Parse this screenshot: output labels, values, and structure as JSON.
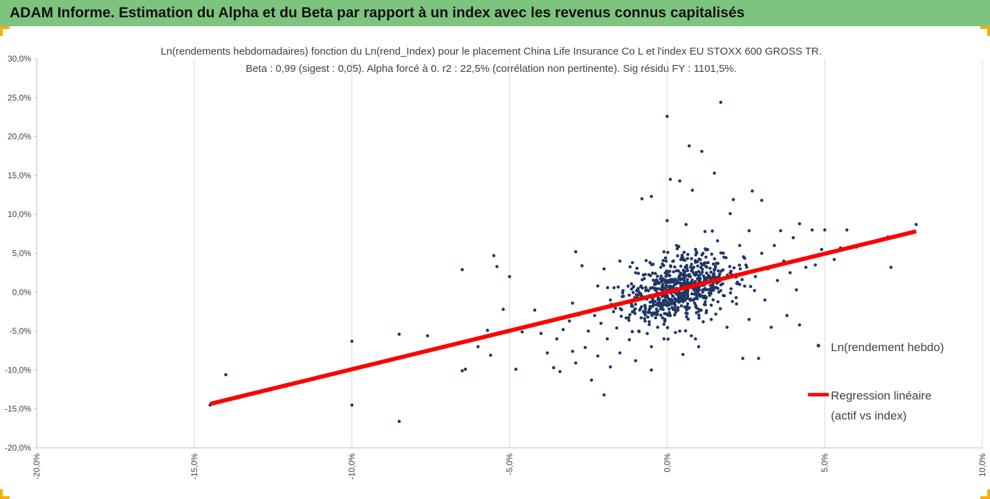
{
  "header": {
    "title": "ADAM Informe. Estimation du Alpha et du Beta par rapport à un index avec les revenus connus capitalisés"
  },
  "colors": {
    "banner": "#7dc47e",
    "points": "#1f3864",
    "regression": "#ff0000",
    "grid": "#d9d9d9",
    "corner": "#f2b300"
  },
  "chart_data": {
    "type": "scatter",
    "title": "Ln(rendements hebdomadaires) fonction du Ln(rend_Index) pour le placement China Life Insurance Co L et l'index EU STOXX 600 GROSS TR.",
    "subtitle": "Beta : 0,99 (sigest : 0,05). Alpha forcé à 0. r2 : 22,5% (corrélation non pertinente). Sig résidu FY : 1101,5%.",
    "xlim": [
      -0.2,
      0.1
    ],
    "ylim": [
      -0.2,
      0.3
    ],
    "x_ticks": [
      -0.2,
      -0.15,
      -0.1,
      -0.05,
      0.0,
      0.05,
      0.1
    ],
    "x_tick_labels": [
      "-20,0%",
      "-15,0%",
      "-10,0%",
      "-5,0%",
      "0,0%",
      "5,0%",
      "10,0%"
    ],
    "y_ticks": [
      -0.2,
      -0.15,
      -0.1,
      -0.05,
      0.0,
      0.05,
      0.1,
      0.15,
      0.2,
      0.25,
      0.3
    ],
    "y_tick_labels": [
      "-20,0%",
      "-15,0%",
      "-10,0%",
      "-5,0%",
      "0,0%",
      "5,0%",
      "10,0%",
      "15,0%",
      "20,0%",
      "25,0%",
      "30,0%"
    ],
    "grid": "vertical",
    "legend_position": "right",
    "series": [
      {
        "name": "Ln(rendement hebdo)",
        "kind": "scatter",
        "points": [
          [
            -0.145,
            -0.145
          ],
          [
            -0.14,
            -0.106
          ],
          [
            -0.1,
            -0.063
          ],
          [
            -0.1,
            -0.145
          ],
          [
            -0.085,
            -0.054
          ],
          [
            -0.085,
            -0.166
          ],
          [
            -0.076,
            -0.056
          ],
          [
            -0.065,
            -0.101
          ],
          [
            -0.065,
            0.029
          ],
          [
            -0.064,
            -0.099
          ],
          [
            -0.06,
            -0.07
          ],
          [
            -0.057,
            -0.049
          ],
          [
            -0.056,
            -0.081
          ],
          [
            -0.055,
            0.047
          ],
          [
            -0.054,
            0.033
          ],
          [
            -0.052,
            -0.022
          ],
          [
            -0.05,
            -0.049
          ],
          [
            -0.048,
            -0.099
          ],
          [
            -0.05,
            0.02
          ],
          [
            -0.046,
            -0.051
          ],
          [
            -0.042,
            -0.023
          ],
          [
            -0.04,
            -0.053
          ],
          [
            -0.038,
            -0.078
          ],
          [
            -0.036,
            -0.097
          ],
          [
            -0.035,
            -0.06
          ],
          [
            -0.034,
            -0.102
          ],
          [
            -0.033,
            -0.048
          ],
          [
            -0.031,
            -0.037
          ],
          [
            -0.03,
            -0.076
          ],
          [
            -0.03,
            -0.014
          ],
          [
            -0.029,
            0.052
          ],
          [
            -0.029,
            -0.091
          ],
          [
            -0.028,
            -0.029
          ],
          [
            -0.027,
            0.034
          ],
          [
            -0.026,
            -0.071
          ],
          [
            -0.025,
            -0.05
          ],
          [
            -0.024,
            -0.113
          ],
          [
            -0.023,
            -0.03
          ],
          [
            -0.022,
            0.008
          ],
          [
            -0.022,
            -0.082
          ],
          [
            -0.021,
            -0.04
          ],
          [
            -0.02,
            -0.132
          ],
          [
            -0.019,
            -0.06
          ],
          [
            -0.018,
            -0.01
          ],
          [
            -0.018,
            -0.096
          ],
          [
            -0.017,
            -0.025
          ],
          [
            -0.016,
            -0.046
          ],
          [
            -0.015,
            -0.078
          ],
          [
            -0.014,
            0.002
          ],
          [
            -0.013,
            -0.033
          ],
          [
            -0.012,
            -0.061
          ],
          [
            -0.011,
            -0.018
          ],
          [
            -0.011,
            0.038
          ],
          [
            -0.01,
            -0.088
          ],
          [
            -0.009,
            -0.05
          ],
          [
            -0.008,
            -0.005
          ],
          [
            -0.008,
            0.12
          ],
          [
            -0.007,
            -0.037
          ],
          [
            -0.006,
            -0.026
          ],
          [
            -0.005,
            0.123
          ],
          [
            -0.005,
            -0.07
          ],
          [
            -0.004,
            0.01
          ],
          [
            -0.003,
            -0.045
          ],
          [
            -0.002,
            -0.015
          ],
          [
            -0.002,
            0.032
          ],
          [
            -0.001,
            -0.06
          ],
          [
            0.0,
            0.015
          ],
          [
            0.0,
            0.226
          ],
          [
            0.0,
            0.092
          ],
          [
            0.001,
            -0.03
          ],
          [
            0.001,
            0.145
          ],
          [
            0.002,
            0.04
          ],
          [
            0.003,
            -0.01
          ],
          [
            0.003,
            0.06
          ],
          [
            0.004,
            -0.05
          ],
          [
            0.004,
            0.143
          ],
          [
            0.005,
            0.022
          ],
          [
            0.006,
            0.005
          ],
          [
            0.006,
            0.087
          ],
          [
            0.007,
            -0.02
          ],
          [
            0.007,
            0.188
          ],
          [
            0.008,
            0.03
          ],
          [
            0.008,
            0.131
          ],
          [
            0.009,
            -0.06
          ],
          [
            0.009,
            0.055
          ],
          [
            0.01,
            0.012
          ],
          [
            0.011,
            0.181
          ],
          [
            0.012,
            -0.005
          ],
          [
            0.012,
            0.078
          ],
          [
            0.013,
            0.038
          ],
          [
            0.014,
            -0.035
          ],
          [
            0.015,
            0.153
          ],
          [
            0.015,
            0.02
          ],
          [
            0.016,
            0.066
          ],
          [
            0.017,
            0.244
          ],
          [
            0.017,
            0.002
          ],
          [
            0.018,
            0.045
          ],
          [
            0.019,
            -0.045
          ],
          [
            0.02,
            0.101
          ],
          [
            0.02,
            0.025
          ],
          [
            0.021,
            0.119
          ],
          [
            0.022,
            -0.015
          ],
          [
            0.023,
            0.06
          ],
          [
            0.023,
            0.01
          ],
          [
            0.024,
            -0.085
          ],
          [
            0.025,
            0.035
          ],
          [
            0.026,
            0.079
          ],
          [
            0.026,
            -0.035
          ],
          [
            0.027,
            0.13
          ],
          [
            0.028,
            0.02
          ],
          [
            0.029,
            -0.085
          ],
          [
            0.03,
            0.05
          ],
          [
            0.03,
            0.118
          ],
          [
            0.031,
            -0.01
          ],
          [
            0.032,
            0.03
          ],
          [
            0.033,
            -0.045
          ],
          [
            0.034,
            0.06
          ],
          [
            0.035,
            0.015
          ],
          [
            0.036,
            0.079
          ],
          [
            0.037,
            0.04
          ],
          [
            0.038,
            -0.03
          ],
          [
            0.039,
            0.025
          ],
          [
            0.04,
            0.07
          ],
          [
            0.041,
            0.003
          ],
          [
            0.042,
            0.088
          ],
          [
            0.042,
            -0.042
          ],
          [
            0.044,
            0.032
          ],
          [
            0.046,
            0.08
          ],
          [
            0.047,
            0.035
          ],
          [
            0.049,
            0.055
          ],
          [
            0.05,
            0.08
          ],
          [
            0.053,
            0.042
          ],
          [
            0.055,
            0.057
          ],
          [
            0.057,
            0.08
          ],
          [
            0.06,
            0.058
          ],
          [
            0.07,
            0.071
          ],
          [
            0.071,
            0.032
          ],
          [
            0.079,
            0.087
          ],
          [
            -0.02,
            0.03
          ],
          [
            -0.015,
            0.04
          ],
          [
            -0.01,
            0.025
          ],
          [
            -0.005,
            -0.1
          ],
          [
            0.005,
            -0.08
          ],
          [
            0.01,
            -0.07
          ]
        ]
      },
      {
        "name": "Regression linéaire (actif vs index)",
        "kind": "line",
        "beta": 0.99,
        "x_range": [
          -0.145,
          0.079
        ]
      }
    ]
  },
  "legend": {
    "scatter_label": "Ln(rendement hebdo)",
    "line_label_1": "Regression linéaire",
    "line_label_2": "(actif vs index)"
  }
}
